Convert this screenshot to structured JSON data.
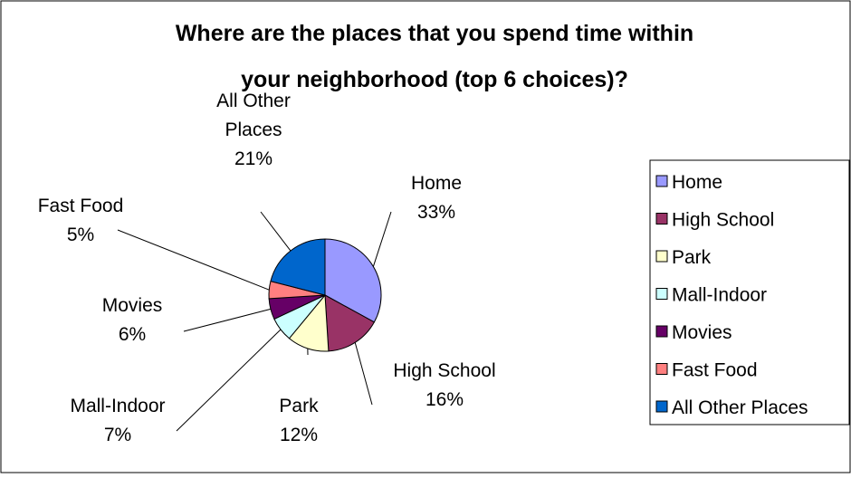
{
  "chart_data": {
    "type": "pie",
    "title_lines": [
      "Where are the places that you spend time within",
      "your neighborhood (top 6 choices)?"
    ],
    "slices": [
      {
        "name": "Home",
        "value": 33,
        "percent_label": "33%",
        "label_lines": [
          "Home"
        ],
        "color": "#9999FF"
      },
      {
        "name": "High School",
        "value": 16,
        "percent_label": "16%",
        "label_lines": [
          "High School"
        ],
        "color": "#993366"
      },
      {
        "name": "Park",
        "value": 12,
        "percent_label": "12%",
        "label_lines": [
          "Park"
        ],
        "color": "#FFFFCC"
      },
      {
        "name": "Mall-Indoor",
        "value": 7,
        "percent_label": "7%",
        "label_lines": [
          "Mall-Indoor"
        ],
        "color": "#CCFFFF"
      },
      {
        "name": "Movies",
        "value": 6,
        "percent_label": "6%",
        "label_lines": [
          "Movies"
        ],
        "color": "#660066"
      },
      {
        "name": "Fast Food",
        "value": 5,
        "percent_label": "5%",
        "label_lines": [
          "Fast Food"
        ],
        "color": "#FF8080"
      },
      {
        "name": "All Other Places",
        "value": 21,
        "percent_label": "21%",
        "label_lines": [
          "All Other",
          "Places"
        ],
        "color": "#0066CC"
      }
    ],
    "legend_position": "right"
  }
}
